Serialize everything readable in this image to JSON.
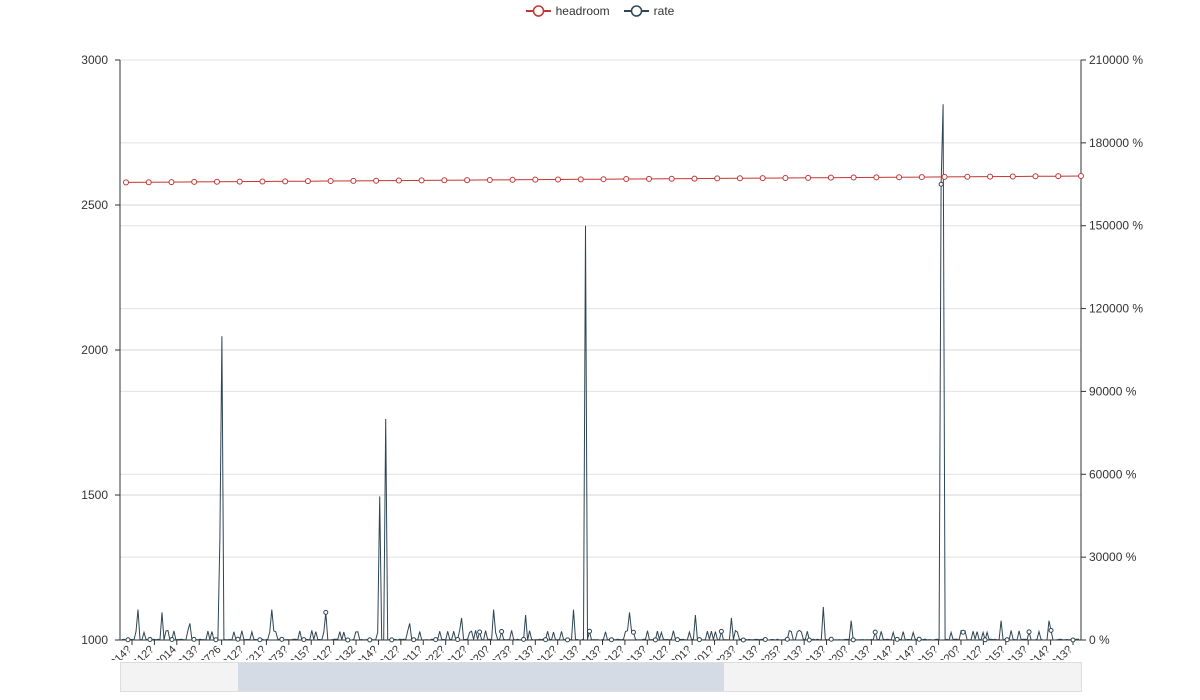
{
  "legend": {
    "items": [
      {
        "label": "headroom",
        "color": "#c23531"
      },
      {
        "label": "rate",
        "color": "#2f4554"
      }
    ]
  },
  "chart_data": {
    "type": "line",
    "title": "",
    "grid": true,
    "legend_position": "top-center",
    "y_left": {
      "min": 1000,
      "max": 3000,
      "ticks": [
        "1000",
        "1500",
        "2000",
        "2500",
        "3000"
      ]
    },
    "y_right": {
      "min": 0,
      "max": 210000,
      "unit": "%",
      "ticks": [
        "0 %",
        "30000 %",
        "60000 %",
        "90000 %",
        "120000 %",
        "150000 %",
        "180000 %",
        "210000 %"
      ]
    },
    "x_tick_labels": [
      "2018100723014?",
      "201810081412?",
      "2018100908014",
      "2018101000313?",
      "201810101137?6",
      "201810102312?",
      "2018101108521?",
      "201810111?73?",
      "201810120015?",
      "201810121?012?",
      "20181013020132",
      "2018101323014?",
      "2018101414012?",
      "2018101508011?",
      "2018101601322?",
      "201810161?012?",
      "2018101?01320?",
      "201810171?073?",
      "201810180?013?",
      "2018101902012?",
      "201810191?013?",
      "201810200?013?",
      "201810210?012?",
      "2018102120013?",
      "201810221?012?",
      "201810222301?",
      "201810231401?",
      "201810231?23?",
      "2018102?0?013?",
      "2018102501325?",
      "2018102?1?013?",
      "2018102?0?013?",
      "201810271?320?",
      "201810272?013?",
      "201810281?014?",
      "201810290?014?",
      "201810292?015?",
      "201810300?0?0?",
      "201810301?012?",
      "201810310?015?",
      "2018110?0213?",
      "2018110?10014?",
      "2018110?1?013?"
    ],
    "series": [
      {
        "name": "headroom",
        "axis": "left",
        "start": 2578,
        "end": 2600,
        "count": 43,
        "symbol": "circle"
      },
      {
        "name": "rate",
        "axis": "right",
        "baseline": 0,
        "count": 480,
        "spikes": [
          {
            "index": 50,
            "value": 110000
          },
          {
            "index": 49,
            "value": 37000
          },
          {
            "index": 132,
            "value": 80000
          },
          {
            "index": 129,
            "value": 52000
          },
          {
            "index": 232,
            "value": 150000
          },
          {
            "index": 411,
            "value": 194000
          },
          {
            "index": 410,
            "value": 165000
          }
        ],
        "small_spikes": [
          {
            "index": 8,
            "value": 11000
          },
          {
            "index": 20,
            "value": 10000
          },
          {
            "index": 34,
            "value": 6000
          },
          {
            "index": 56,
            "value": 3000
          },
          {
            "index": 75,
            "value": 11000
          },
          {
            "index": 102,
            "value": 10000
          },
          {
            "index": 144,
            "value": 6000
          },
          {
            "index": 170,
            "value": 8000
          },
          {
            "index": 186,
            "value": 11000
          },
          {
            "index": 202,
            "value": 9000
          },
          {
            "index": 226,
            "value": 11000
          },
          {
            "index": 254,
            "value": 10000
          },
          {
            "index": 287,
            "value": 9000
          },
          {
            "index": 305,
            "value": 8000
          },
          {
            "index": 351,
            "value": 12000
          },
          {
            "index": 365,
            "value": 7000
          },
          {
            "index": 440,
            "value": 7000
          },
          {
            "index": 464,
            "value": 7000
          }
        ]
      }
    ]
  }
}
